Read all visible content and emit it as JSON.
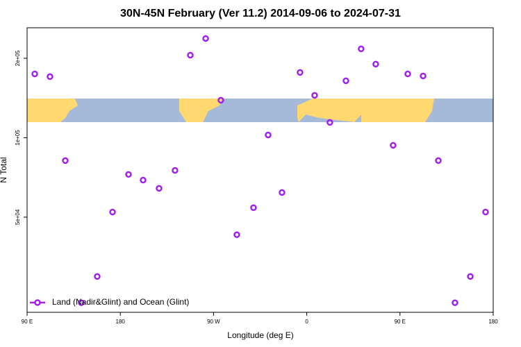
{
  "chart_data": {
    "type": "scatter",
    "title": "30N-45N February (Ver 11.2)   2014-09-06 to 2024-07-31",
    "x_label": "Longitude (deg E)",
    "y_label": "N Total",
    "yscale": "log",
    "xlim": [
      90,
      540
    ],
    "ylim": [
      21800,
      261000
    ],
    "xticks": [
      {
        "value": 90,
        "label": "90 E"
      },
      {
        "value": 180,
        "label": "180"
      },
      {
        "value": 270,
        "label": "90 W"
      },
      {
        "value": 360,
        "label": "0"
      },
      {
        "value": 450,
        "label": "90 E"
      },
      {
        "value": 540,
        "label": "180"
      }
    ],
    "yticks": [
      {
        "value": 50000,
        "label": "5e+04"
      },
      {
        "value": 100000,
        "label": "1e+05"
      },
      {
        "value": 200000,
        "label": "2e+05"
      }
    ],
    "legend": "bottom-left",
    "series": [
      {
        "name": "Land (Nadir&Glint) and Ocean (Glint)",
        "color": "#a020f0",
        "x": [
          97.4,
          112.1,
          126.9,
          142.3,
          157.7,
          172.5,
          187.9,
          202,
          217.4,
          232.8,
          247.6,
          262.4,
          277.1,
          292.5,
          308.6,
          322.7,
          336.1,
          353.5,
          367.6,
          382.3,
          397.8,
          412.5,
          426.6,
          443.4,
          457.5,
          472.3,
          487,
          503.1,
          517.9,
          532.6
        ],
        "values": [
          174500,
          170400,
          81900,
          23700,
          29800,
          52300,
          72600,
          69100,
          64300,
          75200,
          205500,
          237700,
          138700,
          42900,
          54300,
          102400,
          62000,
          176700,
          144700,
          114300,
          164300,
          217100,
          190000,
          93600,
          174500,
          171400,
          81900,
          23700,
          29800,
          52300
        ]
      }
    ]
  }
}
